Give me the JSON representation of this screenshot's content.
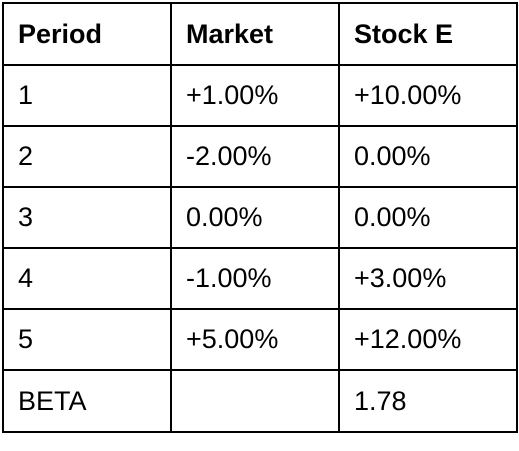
{
  "table": {
    "headers": [
      "Period",
      "Market",
      "Stock E"
    ],
    "rows": [
      [
        "1",
        "+1.00%",
        "+10.00%"
      ],
      [
        "2",
        "-2.00%",
        "0.00%"
      ],
      [
        "3",
        "0.00%",
        "0.00%"
      ],
      [
        "4",
        "-1.00%",
        "+3.00%"
      ],
      [
        "5",
        "+5.00%",
        "+12.00%"
      ],
      [
        "BETA",
        "",
        "1.78"
      ]
    ]
  }
}
